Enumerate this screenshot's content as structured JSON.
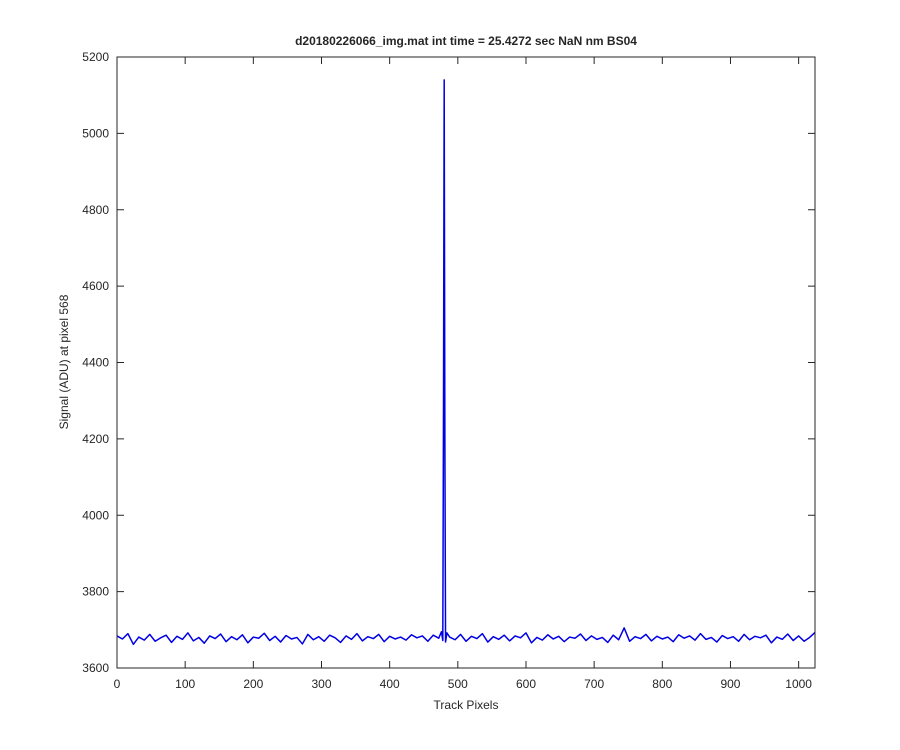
{
  "chart_data": {
    "type": "line",
    "title": "d20180226066_img.mat int time = 25.4272 sec  NaN nm BS04",
    "x_label": "Track Pixels",
    "y_label": "Signal (ADU) at pixel 568",
    "xlim": [
      0,
      1024
    ],
    "ylim": [
      3600,
      5200
    ],
    "xticks": [
      0,
      100,
      200,
      300,
      400,
      500,
      600,
      700,
      800,
      900,
      1000
    ],
    "yticks": [
      3600,
      3800,
      4000,
      4200,
      4400,
      4600,
      4800,
      5000,
      5200
    ],
    "grid": false,
    "x": [
      0,
      8,
      16,
      24,
      32,
      40,
      48,
      56,
      64,
      72,
      80,
      88,
      96,
      104,
      112,
      120,
      128,
      136,
      144,
      152,
      160,
      168,
      176,
      184,
      192,
      200,
      208,
      216,
      224,
      232,
      240,
      248,
      256,
      264,
      272,
      280,
      288,
      296,
      304,
      312,
      320,
      328,
      336,
      344,
      352,
      360,
      368,
      376,
      384,
      392,
      400,
      408,
      416,
      424,
      432,
      440,
      448,
      456,
      464,
      472,
      476,
      478,
      479,
      480,
      481,
      482,
      484,
      488,
      496,
      504,
      512,
      520,
      528,
      536,
      544,
      552,
      560,
      568,
      576,
      584,
      592,
      600,
      608,
      616,
      624,
      632,
      640,
      648,
      656,
      664,
      672,
      680,
      688,
      696,
      704,
      712,
      720,
      728,
      736,
      744,
      752,
      760,
      768,
      776,
      784,
      792,
      800,
      808,
      816,
      824,
      832,
      840,
      848,
      856,
      864,
      872,
      880,
      888,
      896,
      904,
      912,
      920,
      928,
      936,
      944,
      952,
      960,
      968,
      976,
      984,
      992,
      1000,
      1008,
      1016,
      1024
    ],
    "series": [
      {
        "color": "#0000e6",
        "values": [
          3684,
          3676,
          3690,
          3662,
          3681,
          3673,
          3688,
          3670,
          3679,
          3686,
          3667,
          3683,
          3675,
          3692,
          3671,
          3680,
          3665,
          3684,
          3677,
          3689,
          3669,
          3682,
          3674,
          3687,
          3666,
          3681,
          3678,
          3691,
          3672,
          3683,
          3668,
          3685,
          3676,
          3680,
          3663,
          3688,
          3674,
          3682,
          3670,
          3686,
          3679,
          3667,
          3684,
          3675,
          3690,
          3671,
          3682,
          3677,
          3688,
          3669,
          3683,
          3676,
          3681,
          3673,
          3687,
          3679,
          3684,
          3670,
          3686,
          3678,
          3695,
          3672,
          4300,
          5140,
          4200,
          3668,
          3692,
          3681,
          3674,
          3688,
          3670,
          3683,
          3677,
          3690,
          3668,
          3682,
          3675,
          3686,
          3671,
          3684,
          3679,
          3692,
          3666,
          3680,
          3673,
          3687,
          3676,
          3683,
          3669,
          3681,
          3678,
          3689,
          3672,
          3684,
          3675,
          3680,
          3667,
          3686,
          3674,
          3705,
          3670,
          3682,
          3677,
          3688,
          3671,
          3683,
          3676,
          3681,
          3669,
          3687,
          3678,
          3684,
          3673,
          3690,
          3675,
          3680,
          3668,
          3685,
          3677,
          3682,
          3670,
          3688,
          3674,
          3683,
          3679,
          3686,
          3666,
          3681,
          3675,
          3689,
          3672,
          3684,
          3670,
          3680,
          3693
        ]
      }
    ]
  }
}
